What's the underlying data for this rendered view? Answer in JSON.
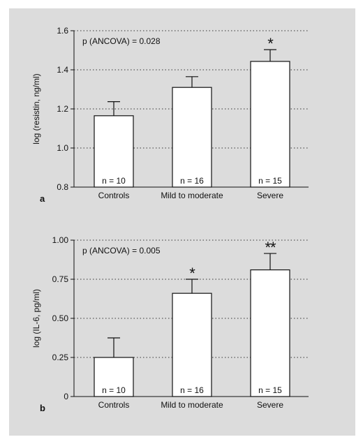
{
  "chart_data": [
    {
      "type": "bar",
      "panel_label": "a",
      "annotation": "p (ANCOVA) = 0.028",
      "ylabel": "log (resistin, ng/ml)",
      "ylim": [
        0.8,
        1.6
      ],
      "yticks": [
        "0.8",
        "1.0",
        "1.2",
        "1.4",
        "1.6"
      ],
      "categories": [
        "Controls",
        "Mild to moderate",
        "Severe"
      ],
      "values": [
        1.165,
        1.31,
        1.443
      ],
      "error_upper": [
        1.237,
        1.365,
        1.503
      ],
      "n_labels": [
        "n = 10",
        "n = 16",
        "n = 15"
      ],
      "significance": [
        "",
        "",
        "*"
      ],
      "grid": "dotted horizontal"
    },
    {
      "type": "bar",
      "panel_label": "b",
      "annotation": "p (ANCOVA) = 0.005",
      "ylabel": "log (IL-6, pg/ml)",
      "ylim": [
        0,
        1.0
      ],
      "yticks": [
        "0",
        "0.25",
        "0.50",
        "0.75",
        "1.00"
      ],
      "categories": [
        "Controls",
        "Mild to moderate",
        "Severe"
      ],
      "values": [
        0.25,
        0.66,
        0.81
      ],
      "error_upper": [
        0.375,
        0.75,
        0.915
      ],
      "n_labels": [
        "n = 10",
        "n = 16",
        "n = 15"
      ],
      "significance": [
        "",
        "*",
        "**"
      ],
      "grid": "dotted horizontal"
    }
  ]
}
